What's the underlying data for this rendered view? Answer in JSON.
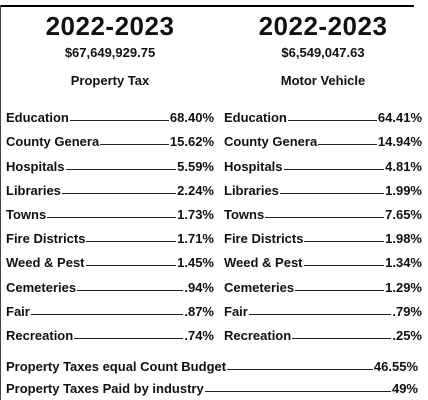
{
  "left": {
    "year": "2022-2023",
    "amount": "$67,649,929.75",
    "heading": "Property Tax",
    "items": [
      {
        "name": "Education",
        "value": "68.40%"
      },
      {
        "name": "County Genera",
        "value": "15.62%"
      },
      {
        "name": "Hospitals",
        "value": "5.59%"
      },
      {
        "name": "Libraries",
        "value": "2.24%"
      },
      {
        "name": "Towns",
        "value": "1.73%"
      },
      {
        "name": "Fire Districts",
        "value": "1.71%"
      },
      {
        "name": "Weed & Pest",
        "value": "1.45%"
      },
      {
        "name": "Cemeteries",
        "value": ".94%"
      },
      {
        "name": "Fair",
        "value": ".87%"
      },
      {
        "name": "Recreation",
        "value": ".74%"
      }
    ]
  },
  "right": {
    "year": "2022-2023",
    "amount": "$6,549,047.63",
    "heading": "Motor Vehicle",
    "items": [
      {
        "name": "Education",
        "value": "64.41%"
      },
      {
        "name": "County Genera",
        "value": "14.94%"
      },
      {
        "name": "Hospitals",
        "value": "4.81%"
      },
      {
        "name": "Libraries",
        "value": "1.99%"
      },
      {
        "name": "Towns",
        "value": "7.65%"
      },
      {
        "name": "Fire Districts",
        "value": "1.98%"
      },
      {
        "name": "Weed & Pest",
        "value": "1.34%"
      },
      {
        "name": "Cemeteries",
        "value": "1.29%"
      },
      {
        "name": "Fair",
        "value": ".79%"
      },
      {
        "name": "Recreation",
        "value": ".25%"
      }
    ]
  },
  "summary": [
    {
      "label": "Property Taxes equal Count Budget",
      "value": "46.55%"
    },
    {
      "label": "Property Taxes Paid by industry",
      "value": "49%"
    }
  ]
}
